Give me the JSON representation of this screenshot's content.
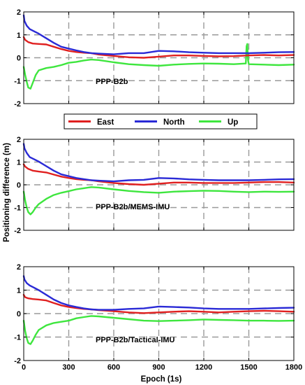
{
  "figure": {
    "ylabel": "Positioning difference (m)",
    "xlabel": "Epoch (1s)"
  },
  "legend": {
    "items": [
      {
        "label": "East",
        "color": "#e02020"
      },
      {
        "label": "North",
        "color": "#2a2ad6"
      },
      {
        "label": "Up",
        "color": "#3ee63e"
      }
    ]
  },
  "colors": {
    "east": "#e02020",
    "north": "#2a2ad6",
    "up": "#3ee63e",
    "grid": "#9a9a9a"
  },
  "chart_data": [
    {
      "type": "line",
      "panel_label": "PPP-B2b",
      "xlim": [
        0,
        1800
      ],
      "ylim": [
        -2,
        2
      ],
      "xticks": [
        0,
        300,
        600,
        900,
        1200,
        1500,
        1800
      ],
      "yticks": [
        -2,
        -1,
        0,
        1,
        2
      ],
      "grid": true,
      "series": [
        {
          "name": "East",
          "x": [
            0,
            10,
            30,
            60,
            100,
            150,
            200,
            250,
            300,
            350,
            400,
            450,
            500,
            600,
            700,
            800,
            900,
            1000,
            1100,
            1200,
            1300,
            1400,
            1500,
            1600,
            1700,
            1800
          ],
          "values": [
            0.9,
            0.78,
            0.68,
            0.62,
            0.6,
            0.58,
            0.48,
            0.38,
            0.3,
            0.25,
            0.22,
            0.2,
            0.14,
            0.08,
            0.02,
            0.0,
            0.05,
            0.1,
            0.1,
            0.08,
            0.06,
            0.07,
            0.1,
            0.12,
            0.1,
            0.12
          ]
        },
        {
          "name": "North",
          "x": [
            0,
            5,
            20,
            40,
            70,
            100,
            150,
            200,
            250,
            300,
            350,
            400,
            450,
            500,
            600,
            700,
            800,
            900,
            1000,
            1100,
            1200,
            1300,
            1400,
            1500,
            1600,
            1700,
            1800
          ],
          "values": [
            1.85,
            1.6,
            1.4,
            1.25,
            1.15,
            1.05,
            0.85,
            0.65,
            0.48,
            0.4,
            0.32,
            0.25,
            0.2,
            0.18,
            0.15,
            0.2,
            0.2,
            0.3,
            0.28,
            0.24,
            0.22,
            0.2,
            0.2,
            0.2,
            0.22,
            0.24,
            0.25
          ]
        },
        {
          "name": "Up",
          "x": [
            0,
            10,
            20,
            30,
            45,
            60,
            80,
            100,
            150,
            200,
            250,
            300,
            350,
            400,
            450,
            500,
            600,
            700,
            800,
            900,
            1000,
            1100,
            1200,
            1300,
            1400,
            1480,
            1485,
            1490,
            1495,
            1500,
            1600,
            1700,
            1800
          ],
          "values": [
            -0.4,
            -0.75,
            -1.05,
            -1.3,
            -1.35,
            -1.1,
            -0.75,
            -0.55,
            -0.45,
            -0.4,
            -0.32,
            -0.22,
            -0.18,
            -0.12,
            -0.08,
            -0.1,
            -0.2,
            -0.28,
            -0.32,
            -0.35,
            -0.3,
            -0.27,
            -0.25,
            -0.26,
            -0.28,
            -0.25,
            0.5,
            0.6,
            -0.1,
            -0.28,
            -0.3,
            -0.32,
            -0.3
          ]
        }
      ]
    },
    {
      "type": "line",
      "panel_label": "PPP-B2b/MEMS-IMU",
      "xlim": [
        0,
        1800
      ],
      "ylim": [
        -2,
        2
      ],
      "xticks": [
        0,
        300,
        600,
        900,
        1200,
        1500,
        1800
      ],
      "yticks": [
        -2,
        -1,
        0,
        1,
        2
      ],
      "grid": true,
      "series": [
        {
          "name": "East",
          "x": [
            0,
            10,
            30,
            60,
            100,
            150,
            200,
            250,
            300,
            350,
            400,
            450,
            500,
            600,
            700,
            800,
            900,
            1000,
            1100,
            1200,
            1300,
            1400,
            1500,
            1600,
            1700,
            1800
          ],
          "values": [
            0.9,
            0.8,
            0.7,
            0.62,
            0.58,
            0.54,
            0.45,
            0.36,
            0.3,
            0.25,
            0.22,
            0.2,
            0.15,
            0.08,
            0.03,
            0.0,
            0.05,
            0.1,
            0.1,
            0.08,
            0.08,
            0.08,
            0.1,
            0.12,
            0.12,
            0.1
          ]
        },
        {
          "name": "North",
          "x": [
            0,
            5,
            20,
            40,
            70,
            100,
            150,
            200,
            250,
            300,
            350,
            400,
            450,
            500,
            600,
            700,
            800,
            900,
            1000,
            1100,
            1200,
            1300,
            1400,
            1500,
            1600,
            1700,
            1800
          ],
          "values": [
            1.8,
            1.6,
            1.4,
            1.22,
            1.12,
            1.02,
            0.82,
            0.62,
            0.46,
            0.38,
            0.3,
            0.25,
            0.2,
            0.18,
            0.15,
            0.2,
            0.22,
            0.3,
            0.28,
            0.24,
            0.22,
            0.2,
            0.2,
            0.2,
            0.22,
            0.24,
            0.25
          ]
        },
        {
          "name": "Up",
          "x": [
            0,
            10,
            20,
            30,
            45,
            60,
            80,
            100,
            150,
            200,
            250,
            300,
            350,
            400,
            450,
            500,
            600,
            700,
            800,
            900,
            1000,
            1100,
            1200,
            1300,
            1400,
            1500,
            1600,
            1700,
            1800
          ],
          "values": [
            -0.3,
            -0.7,
            -1.0,
            -1.2,
            -1.3,
            -1.2,
            -1.0,
            -0.85,
            -0.62,
            -0.45,
            -0.35,
            -0.28,
            -0.2,
            -0.15,
            -0.1,
            -0.12,
            -0.2,
            -0.27,
            -0.32,
            -0.35,
            -0.3,
            -0.28,
            -0.26,
            -0.27,
            -0.3,
            -0.32,
            -0.3,
            -0.31,
            -0.3
          ]
        }
      ]
    },
    {
      "type": "line",
      "panel_label": "PPP-B2b/Tactical-IMU",
      "xlim": [
        0,
        1800
      ],
      "ylim": [
        -2,
        2
      ],
      "xticks": [
        0,
        300,
        600,
        900,
        1200,
        1500,
        1800
      ],
      "yticks": [
        -2,
        -1,
        0,
        1,
        2
      ],
      "grid": true,
      "series": [
        {
          "name": "East",
          "x": [
            0,
            10,
            30,
            60,
            100,
            150,
            200,
            250,
            300,
            350,
            400,
            450,
            500,
            600,
            700,
            800,
            900,
            1000,
            1100,
            1200,
            1300,
            1400,
            1500,
            1600,
            1700,
            1800
          ],
          "values": [
            0.8,
            0.7,
            0.65,
            0.62,
            0.6,
            0.56,
            0.45,
            0.35,
            0.28,
            0.24,
            0.2,
            0.18,
            0.15,
            0.1,
            0.05,
            0.02,
            0.05,
            0.08,
            0.1,
            0.08,
            0.05,
            0.08,
            0.1,
            0.12,
            0.1,
            0.08
          ]
        },
        {
          "name": "North",
          "x": [
            0,
            5,
            20,
            40,
            70,
            100,
            150,
            200,
            250,
            300,
            350,
            400,
            450,
            500,
            600,
            700,
            800,
            900,
            1000,
            1100,
            1200,
            1300,
            1400,
            1500,
            1600,
            1700,
            1800
          ],
          "values": [
            1.6,
            1.45,
            1.3,
            1.2,
            1.1,
            1.0,
            0.8,
            0.6,
            0.45,
            0.35,
            0.28,
            0.22,
            0.18,
            0.16,
            0.16,
            0.2,
            0.22,
            0.3,
            0.28,
            0.26,
            0.22,
            0.2,
            0.2,
            0.2,
            0.22,
            0.24,
            0.25
          ]
        },
        {
          "name": "Up",
          "x": [
            0,
            10,
            20,
            30,
            45,
            60,
            80,
            100,
            150,
            200,
            250,
            300,
            350,
            400,
            450,
            500,
            600,
            700,
            800,
            900,
            1000,
            1100,
            1200,
            1300,
            1400,
            1500,
            1600,
            1700,
            1800
          ],
          "values": [
            -0.3,
            -0.75,
            -1.05,
            -1.25,
            -1.3,
            -1.15,
            -0.9,
            -0.7,
            -0.5,
            -0.4,
            -0.35,
            -0.3,
            -0.2,
            -0.15,
            -0.1,
            -0.12,
            -0.18,
            -0.24,
            -0.3,
            -0.32,
            -0.3,
            -0.28,
            -0.25,
            -0.27,
            -0.28,
            -0.3,
            -0.3,
            -0.31,
            -0.3
          ]
        }
      ]
    }
  ]
}
